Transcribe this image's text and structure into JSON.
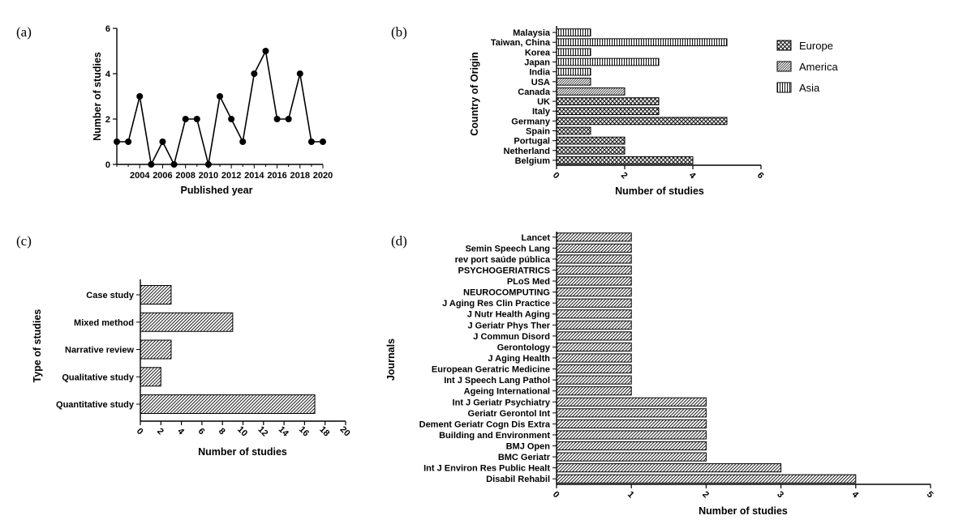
{
  "chart_data": [
    {
      "panel": "(a)",
      "type": "line",
      "xlabel": "Published year",
      "ylabel": "Number of studies",
      "xlim": [
        2002,
        2020
      ],
      "ylim": [
        0,
        6
      ],
      "x_ticks": [
        2004,
        2006,
        2008,
        2010,
        2012,
        2014,
        2016,
        2018,
        2020
      ],
      "y_ticks": [
        0,
        2,
        4,
        6
      ],
      "x": [
        2002,
        2003,
        2004,
        2005,
        2006,
        2007,
        2008,
        2009,
        2010,
        2011,
        2012,
        2013,
        2014,
        2015,
        2016,
        2017,
        2018,
        2019,
        2020
      ],
      "y": [
        1,
        1,
        3,
        0,
        1,
        0,
        2,
        2,
        0,
        3,
        2,
        1,
        4,
        5,
        2,
        2,
        4,
        1,
        1
      ],
      "marker": "circle",
      "grid": false
    },
    {
      "panel": "(b)",
      "type": "bar",
      "orientation": "horizontal",
      "xlabel": "Number of studies",
      "ylabel": "Country of Origin",
      "xlim": [
        0,
        6
      ],
      "x_ticks": [
        0,
        2,
        4,
        6
      ],
      "categories": [
        "Malaysia",
        "Taiwan, China",
        "Korea",
        "Japan",
        "India",
        "USA",
        "Canada",
        "UK",
        "Italy",
        "Germany",
        "Spain",
        "Portugal",
        "Netherland",
        "Belgium"
      ],
      "values": [
        1,
        5,
        1,
        3,
        1,
        1,
        2,
        3,
        3,
        5,
        1,
        2,
        2,
        4
      ],
      "groups": [
        "Asia",
        "Asia",
        "Asia",
        "Asia",
        "Asia",
        "America",
        "America",
        "Europe",
        "Europe",
        "Europe",
        "Europe",
        "Europe",
        "Europe",
        "Europe"
      ],
      "legend": [
        {
          "name": "Europe",
          "pattern": "crosshatch"
        },
        {
          "name": "America",
          "pattern": "fine-diagonal"
        },
        {
          "name": "Asia",
          "pattern": "vertical"
        }
      ],
      "legend_position": "right",
      "grid": false
    },
    {
      "panel": "(c)",
      "type": "bar",
      "orientation": "horizontal",
      "xlabel": "Number of studies",
      "ylabel": "Type of studies",
      "xlim": [
        0,
        20
      ],
      "x_ticks": [
        0,
        2,
        4,
        6,
        8,
        10,
        12,
        14,
        16,
        18,
        20
      ],
      "categories": [
        "Case study",
        "Mixed method",
        "Narrative review",
        "Qualitative study",
        "Quantitative study"
      ],
      "values": [
        3,
        9,
        3,
        2,
        17
      ],
      "grid": false
    },
    {
      "panel": "(d)",
      "type": "bar",
      "orientation": "horizontal",
      "xlabel": "Number of studies",
      "ylabel": "Journals",
      "xlim": [
        0,
        5
      ],
      "x_ticks": [
        0,
        1,
        2,
        3,
        4,
        5
      ],
      "categories": [
        "Lancet",
        "Semin Speech Lang",
        "rev port saúde pública",
        "PSYCHOGERIATRICS",
        "PLoS Med",
        "NEUROCOMPUTING",
        "J Aging Res Clin Practice",
        "J Nutr Health Aging",
        "J Geriatr Phys Ther",
        "J Commun Disord",
        "Gerontology",
        "J Aging Health",
        "European Geratric Medicine",
        "Int J Speech Lang Pathol",
        "Ageing International",
        "Int J Geriatr Psychiatry",
        "Geriatr Gerontol Int",
        "Dement Geriatr Cogn Dis Extra",
        "Building and Environment",
        "BMJ Open",
        "BMC Geriatr",
        "Int J Environ Res Public Healt",
        "Disabil Rehabil"
      ],
      "values": [
        1,
        1,
        1,
        1,
        1,
        1,
        1,
        1,
        1,
        1,
        1,
        1,
        1,
        1,
        1,
        2,
        2,
        2,
        2,
        2,
        2,
        3,
        4
      ],
      "grid": false
    }
  ]
}
